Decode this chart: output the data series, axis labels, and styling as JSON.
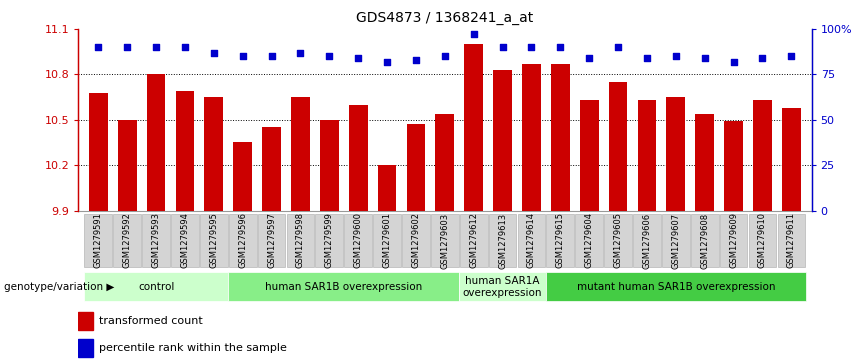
{
  "title": "GDS4873 / 1368241_a_at",
  "samples": [
    "GSM1279591",
    "GSM1279592",
    "GSM1279593",
    "GSM1279594",
    "GSM1279595",
    "GSM1279596",
    "GSM1279597",
    "GSM1279598",
    "GSM1279599",
    "GSM1279600",
    "GSM1279601",
    "GSM1279602",
    "GSM1279603",
    "GSM1279612",
    "GSM1279613",
    "GSM1279614",
    "GSM1279615",
    "GSM1279604",
    "GSM1279605",
    "GSM1279606",
    "GSM1279607",
    "GSM1279608",
    "GSM1279609",
    "GSM1279610",
    "GSM1279611"
  ],
  "bar_values": [
    10.68,
    10.5,
    10.8,
    10.69,
    10.65,
    10.35,
    10.45,
    10.65,
    10.5,
    10.6,
    10.2,
    10.47,
    10.54,
    11.0,
    10.83,
    10.87,
    10.87,
    10.63,
    10.75,
    10.63,
    10.65,
    10.54,
    10.49,
    10.63,
    10.58
  ],
  "percentile_values": [
    90,
    90,
    90,
    90,
    87,
    85,
    85,
    87,
    85,
    84,
    82,
    83,
    85,
    97,
    90,
    90,
    90,
    84,
    90,
    84,
    85,
    84,
    82,
    84,
    85
  ],
  "bar_color": "#cc0000",
  "dot_color": "#0000cc",
  "ylim_left": [
    9.9,
    11.1
  ],
  "ylim_right": [
    0,
    100
  ],
  "yticks_left": [
    9.9,
    10.2,
    10.5,
    10.8,
    11.1
  ],
  "yticks_right": [
    0,
    25,
    50,
    75,
    100
  ],
  "ytick_labels_left": [
    "9.9",
    "10.2",
    "10.5",
    "10.8",
    "11.1"
  ],
  "ytick_labels_right": [
    "0",
    "25",
    "50",
    "75",
    "100%"
  ],
  "grid_lines": [
    10.2,
    10.5,
    10.8
  ],
  "groups": [
    {
      "label": "control",
      "start": 0,
      "end": 5,
      "color": "#ccffcc"
    },
    {
      "label": "human SAR1B overexpression",
      "start": 5,
      "end": 13,
      "color": "#88ee88"
    },
    {
      "label": "human SAR1A\noverexpression",
      "start": 13,
      "end": 16,
      "color": "#ccffcc"
    },
    {
      "label": "mutant human SAR1B overexpression",
      "start": 16,
      "end": 25,
      "color": "#44cc44"
    }
  ],
  "xlabel_genotype": "genotype/variation",
  "legend_bar_label": "transformed count",
  "legend_dot_label": "percentile rank within the sample",
  "xticklabel_bg": "#cccccc",
  "xticklabel_border": "#aaaaaa"
}
